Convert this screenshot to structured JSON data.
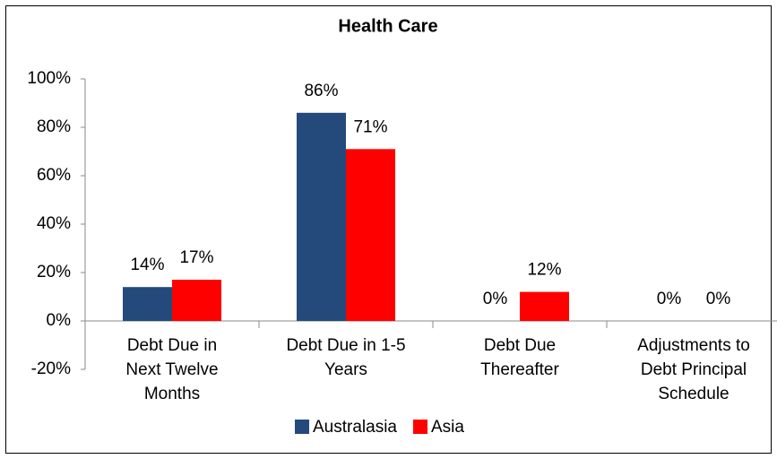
{
  "chart_data": {
    "type": "bar",
    "title": "Health Care",
    "categories": [
      "Debt Due in Next Twelve Months",
      "Debt Due in 1-5 Years",
      "Debt Due Thereafter",
      "Adjustments to Debt Principal Schedule"
    ],
    "series": [
      {
        "name": "Australasia",
        "color": "#244a7c",
        "values": [
          14,
          86,
          0,
          0
        ],
        "value_labels": [
          "14%",
          "86%",
          "0%",
          "0%"
        ]
      },
      {
        "name": "Asia",
        "color": "#ff0000",
        "values": [
          17,
          71,
          12,
          0
        ],
        "value_labels": [
          "17%",
          "71%",
          "12%",
          "0%"
        ]
      }
    ],
    "ylim": [
      -20,
      100
    ],
    "yticks": [
      {
        "value": -20,
        "label": "-20%"
      },
      {
        "value": 0,
        "label": "0%"
      },
      {
        "value": 20,
        "label": "20%"
      },
      {
        "value": 40,
        "label": "40%"
      },
      {
        "value": 60,
        "label": "60%"
      },
      {
        "value": 80,
        "label": "80%"
      },
      {
        "value": 100,
        "label": "100%"
      }
    ],
    "legend": "bottom",
    "grid": false
  }
}
